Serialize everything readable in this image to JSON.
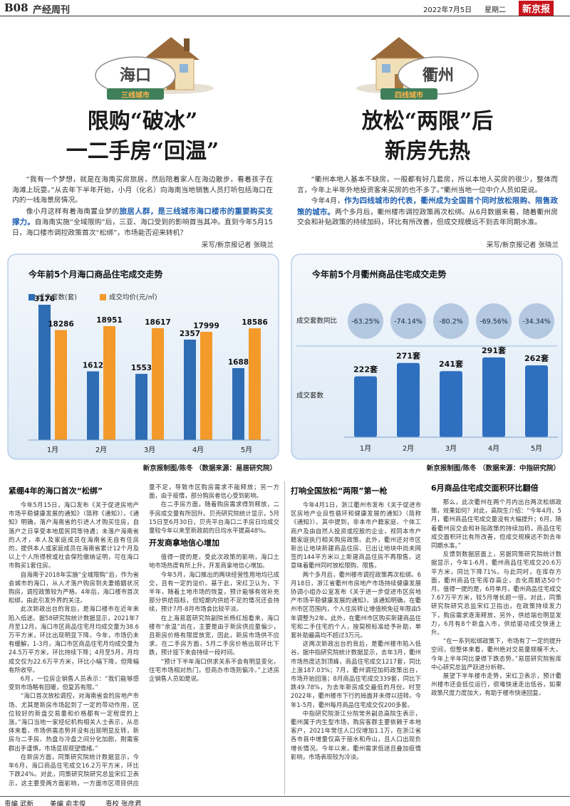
{
  "header": {
    "page": "B08",
    "section": "产经周刊",
    "date": "2022年7月5日",
    "weekday": "星期二",
    "paper": "新京报"
  },
  "left": {
    "city": "海口",
    "tier": "三线城市",
    "headline": [
      "限购“破冰”",
      "一二手房“回温”"
    ],
    "intro": [
      "“我有一个梦想，就是在海南买房旅居，然后陪着家人在海边散步，看着孩子在海滩上玩耍。”从去年下半年开始，小月（化名）向海南当地销售人员打听包括海口在内的一线海景房情况。",
      {
        "before": "像小月这样有着海南置业梦的",
        "highlight": "旅居人群，是三线城市海口楼市的重要购买支撑力。",
        "after": "自海南实施“全域限购”后，三亚、海口受到的影响首当其冲。直到今年5月15日，海口楼市调控政策首次“松绑”，市场能否迎来转机？"
      }
    ],
    "byline": "采写/新京报记者 张晓兰",
    "article": [
      {
        "heading": "紧绷4年的海口首次“松绑”",
        "paragraphs": [
          "今年5月15日，海口发布《关于促进房地产市场平稳健康发展的通知》（简称《通知》）。《通知》明确，落户海南省的引进人才购买住房，自落户之日享受本地居民同等待遇；未落户海南省的人才，本人及家庭成员在海南省无自有住房的，提供本人或家庭成员在海南省累计12个月及以上个人所得税或社会保险缴纳证明，可在海口市购买1套住房。",
          "自海南于2018年实施“全域限购”后，作为省会城市的海口，从人才落户购房到夫妻婚姻状况购房，调控政策较为严格。4年后，海口楼市首次松绑，由此引发外界的关注。",
          "此次新政出台的背后，是海口楼市在近年来陷入低迷。据58研究院统计数据显示，2021年7月至12月，海口市区商品住宅月均成交量为38.6万平方米，环比出现明显下降。今年，市场仍未有缓解，1-3月，海口市区商品住宅月均成交量为24.5万平方米，环比持续下降；4月至5月，月均成交仅为22.6万平方米，环比小幅下降，但降幅有所收窄。",
          "6月，一位房企销售人员表示：“我们能够感受到市场略有回暖，但复苏有限。”",
          "“海口首次放松调控，对海南省会的房地产市场、尤其是新房市场起到了一定的带动作用，区位较好的新盘交易量和价格都有一定程度的上涨。”海口当地一家经纪机构相关人士表示，从总体来看，市场供需态势并没有出现明显反转，新房与二手房、热盘与冷盘之间分化加剧，刚需客群出手谨慎，市场显现观望情绪。”",
          "在新房方面，同策研究院统计数据显示，今年6月，海口商品住宅成交16.2万平方米，环比下跌24%。对此，同策研究院研究总监宋红卫表示，这主要受两方面影响，一方面市区项目供应量不足，导致市区购房需求不能释放；另一方面，由于疫情，部分购房者信心受到影响。",
          "在二手房方面，随着购房需求得到释放，二手房成交量有所回升。贝壳研究院统计显示，5月15日至6月30日，贝壳平台海口二手房日均成交量较今年以来至新政前的日均水平提高48%。"
        ]
      },
      {
        "heading": "开发商拿地信心增加",
        "paragraphs": [
          "值得一提的是，受此次政策的影响，海口土地市场热度有所上升，开发商拿地信心增加。",
          "今年5月，海口推出的两块经营性用地均已成交，且有一定的溢价。基于此，宋红卫认为，下半年，随着土地市场的恢复，预计能够有效补充部分供给指标，但短期内供给不足的情况还会持续，预计7月-8月市场会比较平淡。",
          "在上海易居研究院副院长杨红旭看来，海口楼市“余温”尚在，主要是由于新房供应量偏少，且新房价格有限度放宽，因此，新房市场供不应求。在二手房方面，5月二手房价格出现环比下跌，预计接下来会持续一段时间。",
          "“预计下半年海口供求关系不会有明显变化，住宅市场相对热门，但商办市场则偏冷。”上述房企销售人员如是说。"
        ]
      }
    ]
  },
  "right": {
    "city": "衢州",
    "tier": "四线城市",
    "headline": [
      "放松“两限”后",
      "新房先热"
    ],
    "intro": [
      "“衢州本地人基本不缺房，一般都有好几套房，所以本地人买房的很少，整体而言，今年上半年外地投资客来买房的也不多了。”衢州当地一位中介人员如是说。",
      {
        "before": "今年4月，",
        "highlight": "作为四线城市的代表，衢州成为全国首个同时放松限购、限售政策的城市。",
        "after": "两个多月后，衢州楼市调控政策再次松绑。从6月数据来看，随着衢州房交会和补贴政策的持续加码，环比有所改善，但成交规模远不到去年同期水准。"
      }
    ],
    "byline": "采写/新京报记者 张晓兰",
    "article": [
      {
        "heading": "打响全国放松“两限”第一枪",
        "paragraphs": [
          "今年4月1日，浙江衢州市发布《关于促进市区房地产业良性循环和健康发展的通知》（简称《通知》）。其中提到，非本市户籍家庭、个体工商户及由自然人投资或控股的企业，视同本市户籍家庭执行相关购房政策。此外，衢州还对市区新出让地块新建商品住房、已出让地块中尚未网签的144平方米以上新建商品住房不再限售。这意味着衢州同时放松限购、限售。",
          "两个多月后，衢州楼市调控政策再次松绑。6月18日，浙江省衢州市房地产市场持续健康发展协调小组办公室发布《关于进一步促进市区房地产市场平稳健康发展的通知》。该通知明确，在衢州市区范围内，个人住房转让增值税免征年限由5年调整为2年。此外，在衢州市区购买新建商品住宅和二手住宅的个人，按契税标准给予补助，单套补助最高均不超过3万元。",
          "这两次新政出台的背后，是衢州楼市陷入低谷。据中指研究院统计数据显示，去年3月，衢州市场热度达到顶峰，商品住宅成交1217套，同比上涨187.03%；7月，衢州调控加码政策出台，市场开始回落；8月商品住宅成交339套，同比下跌49.78%，为去年新房成交最低的月份。时至2022年，衢州楼市下行的局面并未得以扭转。今年1-5月，衢州每月商品住宅成交仅200多套。",
          "中指研究院浙江分院常务副总高院生表示，衢州属于内生型市场，购房客群主要依赖于本地客户，2021年常住人口仅增加1.1万，在浙江省各市县中增量仅高于丽水和舟山，且人口出现负增长情况。今年以来，衢州需求低迷且叠加疫情影响，市场表现较为冷淡。"
        ]
      },
      {
        "heading": "6月商品住宅成交面积环比翻倍",
        "paragraphs": [
          "那么，此次衢州在两个月内出台两次松绑政策，效果如何？对此，高院生介绍：“今年4月、5月，衢州商品住宅成交量没有大幅提升；6月，随着衢州房交会和补贴政策的持续加码，商品住宅成交面积环比有所改善，但成交规模远不到去年同期水准。”",
          "反馈到数据层面上，另据同策研究院统计数据显示，今年1-6月，衢州商品住宅成交20.6万平方米，同比下降71%。与此同时，在库存方面，衢州商品住宅库存高企，去化周期达50个月。值得一提的是，6月单月，衢州商品住宅成交7.67万平方米，较5月增长超一倍。对此，同策研究院研究总监宋红卫指出，在政策持续发力下，购房需求逐渐释放，另外，供给端也明显发力，6月有8个新盘入市，供给驱动成交快速上升。",
          "“在一系列松绑政策下，市场有了一定的提升空间，但整体来看，衢州绝对交易量规模不大，今年上半年同比录得下跌态势。”易居研究院智库中心研究总监严跃进分析称。",
          "展望下半年楼市走势，宋红卫表示，预计衢州楼市还会低位运行，很难快速走出低谷，如果政策尺度力度加大，有助于楼市快速回复。"
        ]
      }
    ]
  },
  "chart_data": [
    {
      "type": "bar",
      "title": "今年前5个月海口商品住宅成交走势",
      "categories": [
        "1月",
        "2月",
        "3月",
        "4月",
        "5月"
      ],
      "series": [
        {
          "name": "成交套数(套)",
          "color": "#2e6db4",
          "values": [
            3176,
            1612,
            1553,
            2357,
            1688
          ]
        },
        {
          "name": "成交均价(元/㎡)",
          "color": "#f39a2b",
          "values": [
            18286,
            18951,
            18617,
            17999,
            18586
          ]
        }
      ],
      "source": "新京报制图/陈冬 （数据来源：易居研究院）"
    },
    {
      "type": "bar",
      "title": "今年前5个月衢州商品住宅成交走势",
      "categories": [
        "1月",
        "2月",
        "3月",
        "4月",
        "5月"
      ],
      "series": [
        {
          "name": "成交套数同比",
          "type": "circle",
          "color": "#a9bfdc",
          "values": [
            -63.25,
            -74.14,
            -80.2,
            -69.56,
            -34.34
          ],
          "value_labels": [
            "-63.25%",
            "-74.14%",
            "-80.2%",
            "-69.56%",
            "-34.34%"
          ]
        },
        {
          "name": "成交套数",
          "type": "bar",
          "color": "#2f6fc0",
          "values": [
            222,
            271,
            241,
            291,
            262
          ],
          "value_labels": [
            "222套",
            "271套",
            "241套",
            "291套",
            "262套"
          ]
        }
      ],
      "source": "新京报制图/陈冬 （数据来源：中指研究院）"
    }
  ],
  "footer": {
    "editor": "责编 武新",
    "designer": "美编 俞丰俊",
    "proof": "责校 张彦君"
  }
}
